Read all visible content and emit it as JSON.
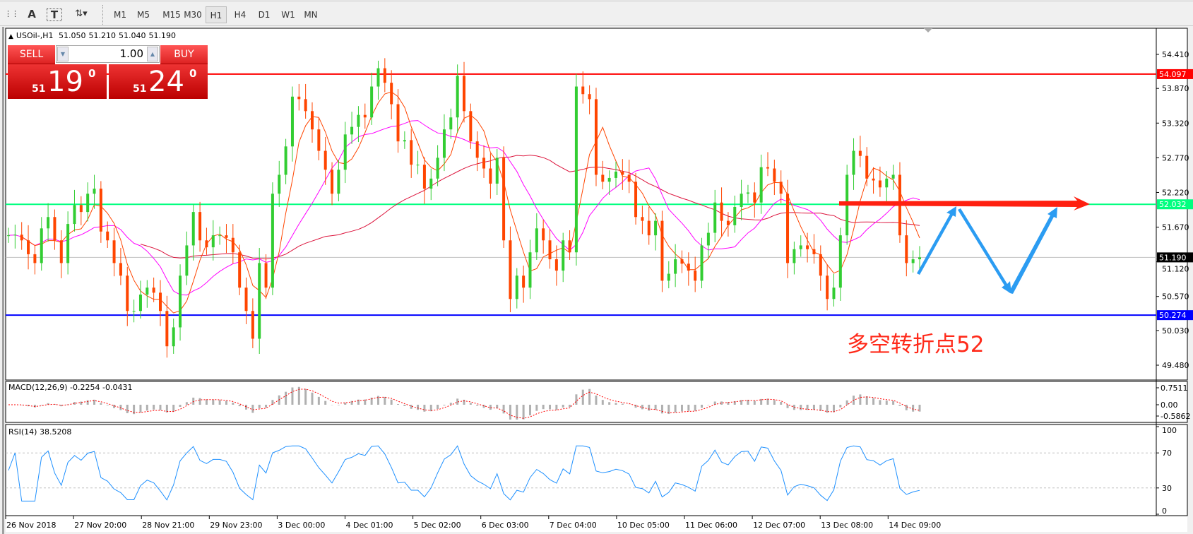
{
  "toolbar": {
    "tools": [
      "period-separator-icon",
      "text-icon",
      "text-label-icon",
      "arrows-icon"
    ],
    "timeframes": [
      "M1",
      "M5",
      "M15",
      "M30",
      "H1",
      "H4",
      "D1",
      "W1",
      "MN"
    ],
    "active_timeframe": "H1"
  },
  "symbol_info": {
    "symbol": "USOil-,H1",
    "open": "51.050",
    "high": "51.210",
    "low": "51.040",
    "close": "51.190"
  },
  "one_click": {
    "sell_label": "SELL",
    "buy_label": "BUY",
    "lot": "1.00",
    "sell_big": "51",
    "sell_pips": "19",
    "sell_frac": "0",
    "buy_big": "51",
    "buy_pips": "24",
    "buy_frac": "0"
  },
  "price_axis": {
    "ticks": [
      "54.410",
      "53.870",
      "53.320",
      "52.770",
      "52.220",
      "51.670",
      "51.120",
      "50.570",
      "50.030",
      "49.480"
    ]
  },
  "levels": [
    {
      "price": 54.097,
      "label": "54.097",
      "color": "#ff0000"
    },
    {
      "price": 52.032,
      "label": "52.032",
      "color": "#00ff7f"
    },
    {
      "price": 50.274,
      "label": "50.274",
      "color": "#0000ff"
    }
  ],
  "current_price": {
    "price": 51.19,
    "label": "51.190"
  },
  "annotation": {
    "text": "多空转折点52",
    "color": "#ff2a1a",
    "arrow_color": "#ff2010",
    "zigzag_color": "#2b9cf2"
  },
  "macd": {
    "label": "MACD(12,26,9) -0.2254 -0.0431",
    "ticks": [
      "0.7511",
      "0.00",
      "-0.5862"
    ]
  },
  "rsi": {
    "label": "RSI(14) 38.5208",
    "ticks": [
      "100",
      "70",
      "30",
      "0"
    ]
  },
  "time_axis": [
    "26 Nov 2018",
    "27 Nov 20:00",
    "28 Nov 21:00",
    "29 Nov 23:00",
    "3 Dec 00:00",
    "4 Dec 01:00",
    "5 Dec 02:00",
    "6 Dec 03:00",
    "7 Dec 04:00",
    "10 Dec 05:00",
    "11 Dec 06:00",
    "12 Dec 07:00",
    "13 Dec 08:00",
    "14 Dec 09:00"
  ],
  "colors": {
    "bull": "#32cd32",
    "bear": "#ff4500",
    "ma_fast": "#ff4500",
    "ma_mid": "#ff00ff",
    "ma_slow": "#dc143c",
    "rsi": "#1e90ff",
    "macd_signal": "#ff0000"
  },
  "chart_data": {
    "type": "candlestick",
    "title": "",
    "ylim": [
      49.3,
      54.8
    ],
    "close": [
      51.54,
      51.55,
      51.46,
      51.24,
      51.1,
      51.65,
      51.83,
      51.46,
      51.1,
      51.72,
      52.02,
      51.91,
      52.2,
      52.28,
      51.6,
      51.46,
      51.1,
      50.9,
      50.34,
      50.34,
      50.6,
      50.71,
      50.63,
      50.34,
      49.78,
      50.08,
      50.9,
      51.38,
      51.91,
      51.46,
      51.35,
      51.54,
      51.54,
      51.5,
      51.27,
      50.71,
      50.34,
      49.9,
      51.1,
      50.71,
      52.2,
      52.5,
      52.95,
      53.74,
      53.7,
      53.51,
      53.22,
      52.88,
      52.58,
      52.2,
      52.58,
      53.14,
      53.26,
      53.45,
      53.41,
      53.9,
      54.19,
      53.96,
      53.62,
      53.03,
      53.05,
      52.66,
      52.66,
      52.28,
      52.44,
      52.77,
      53.22,
      53.41,
      54.07,
      53.51,
      53.03,
      52.77,
      52.6,
      52.36,
      52.77,
      51.46,
      50.53,
      50.9,
      50.71,
      51.27,
      51.65,
      51.46,
      51.16,
      50.98,
      51.46,
      51.27,
      53.9,
      53.78,
      53.7,
      52.5,
      52.39,
      52.45,
      52.55,
      52.5,
      52.39,
      51.83,
      51.77,
      51.54,
      51.77,
      50.82,
      50.93,
      51.16,
      51.09,
      50.98,
      50.82,
      51.38,
      51.58,
      52.06,
      51.77,
      51.7,
      51.99,
      52.2,
      52.22,
      52.06,
      52.62,
      52.6,
      52.39,
      52.2,
      51.1,
      51.32,
      51.38,
      51.32,
      51.24,
      50.9,
      50.53,
      50.71,
      51.54,
      52.5,
      52.88,
      52.8,
      52.44,
      52.41,
      52.3,
      52.44,
      52.5,
      51.54,
      51.1,
      51.16,
      51.19
    ]
  }
}
